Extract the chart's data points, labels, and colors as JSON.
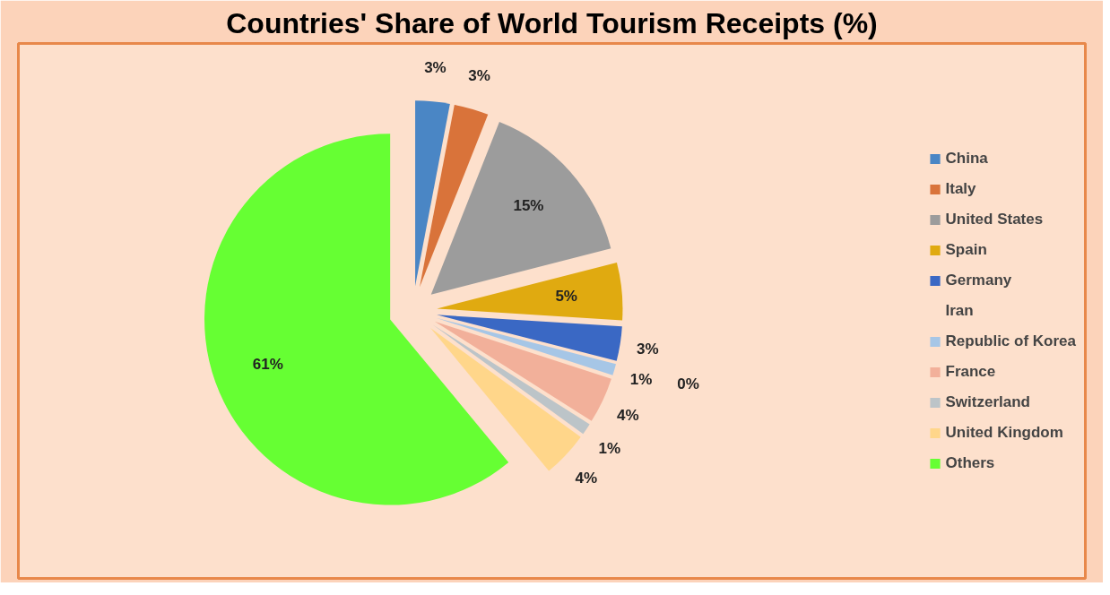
{
  "chart_data": {
    "type": "pie",
    "title": "Countries' Share of World Tourism Receipts (%)",
    "categories": [
      "China",
      "Italy",
      "United States",
      "Spain",
      "Germany",
      "Iran",
      "Republic of Korea",
      "France",
      "Switzerland",
      "United Kingdom",
      "Others"
    ],
    "values": [
      3,
      3,
      15,
      5,
      3,
      0,
      1,
      4,
      1,
      4,
      61
    ],
    "colors": [
      "#4a86c5",
      "#d9733a",
      "#9c9c9c",
      "#e0aa10",
      "#3a68c4",
      "#5a9a3a",
      "#a6c6e6",
      "#f2b09a",
      "#bcc4c8",
      "#ffd68a",
      "#66ff33"
    ],
    "value_labels": [
      "3%",
      "3%",
      "15%",
      "5%",
      "3%",
      "0%",
      "1%",
      "4%",
      "1%",
      "4%",
      "61%"
    ],
    "legend": "right"
  }
}
